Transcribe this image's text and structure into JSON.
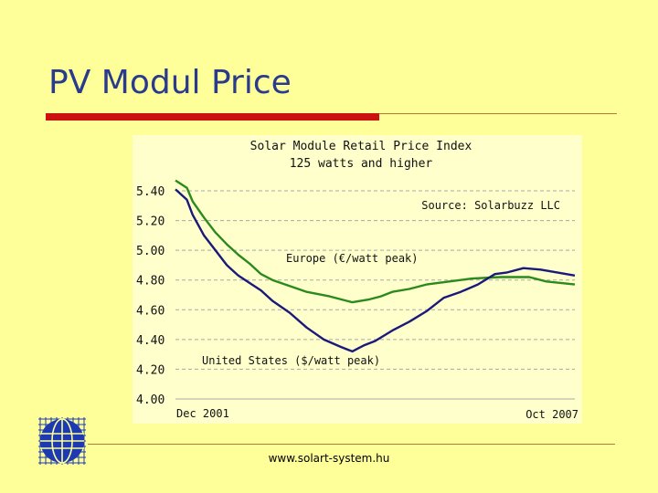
{
  "slide": {
    "title": "PV Modul Price",
    "footer_url": "www.solart-system.hu",
    "colors": {
      "background": "#FFFF99",
      "title": "#2A3A8C",
      "accent_bar": "#CC1111",
      "rule": "#B07A3A"
    }
  },
  "logo": {
    "icon": "globe-grid-icon",
    "color": "#1E3AB0"
  },
  "chart_data": {
    "type": "line",
    "title": "Solar Module Retail Price Index",
    "subtitle": "125 watts and higher",
    "source": "Source: Solarbuzz LLC",
    "xlabel": "",
    "ylabel": "",
    "ylim": [
      4.0,
      5.5
    ],
    "grid": true,
    "yticks": [
      "5.40",
      "5.20",
      "5.00",
      "4.80",
      "4.60",
      "4.40",
      "4.20",
      "4.00"
    ],
    "ytick_values": [
      5.4,
      5.2,
      5.0,
      4.8,
      4.6,
      4.4,
      4.2,
      4.0
    ],
    "x_start_label": "Dec 2001",
    "x_end_label": "Oct 2007",
    "x_range": [
      0,
      70
    ],
    "series": [
      {
        "name": "Europe (€/watt peak)",
        "color": "#2A8A1E",
        "x": [
          0,
          2,
          3,
          5,
          7,
          9,
          11,
          13,
          15,
          17,
          20,
          23,
          27,
          31,
          34,
          36,
          38,
          41,
          44,
          48,
          52,
          57,
          62,
          65,
          70
        ],
        "values": [
          5.47,
          5.42,
          5.33,
          5.22,
          5.12,
          5.04,
          4.97,
          4.91,
          4.84,
          4.8,
          4.76,
          4.72,
          4.69,
          4.65,
          4.67,
          4.69,
          4.72,
          4.74,
          4.77,
          4.79,
          4.81,
          4.82,
          4.82,
          4.79,
          4.77
        ]
      },
      {
        "name": "United States ($/watt peak)",
        "color": "#1A1A7A",
        "x": [
          0,
          2,
          3,
          5,
          7,
          9,
          11,
          13,
          15,
          17,
          20,
          23,
          26,
          29,
          31,
          33,
          35,
          38,
          41,
          44,
          47,
          50,
          53,
          56,
          58,
          61,
          64,
          67,
          70
        ],
        "values": [
          5.41,
          5.34,
          5.24,
          5.1,
          5.0,
          4.9,
          4.83,
          4.78,
          4.73,
          4.66,
          4.58,
          4.48,
          4.4,
          4.35,
          4.32,
          4.36,
          4.39,
          4.46,
          4.52,
          4.59,
          4.68,
          4.72,
          4.77,
          4.84,
          4.85,
          4.88,
          4.87,
          4.85,
          4.83
        ]
      }
    ],
    "series_labels": [
      "Europe (€/watt peak)",
      "United States ($/watt peak)"
    ]
  }
}
